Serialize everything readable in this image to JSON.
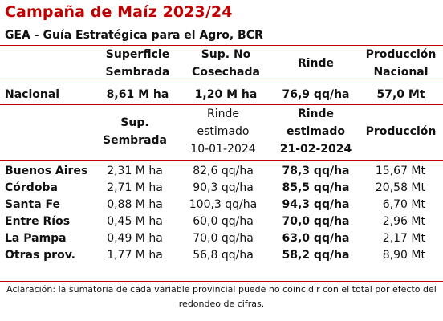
{
  "title": "Campaña de Maíz 2023/24",
  "subtitle": "GEA - Guía Estratégica para el Agro, BCR",
  "national_header": {
    "superficie_l1": "Superficie",
    "superficie_l2": "Sembrada",
    "sup_no_l1": "Sup. No",
    "sup_no_l2": "Cosechada",
    "rinde": "Rinde",
    "produccion_l1": "Producción",
    "produccion_l2": "Nacional"
  },
  "national_row": {
    "label": "Nacional",
    "superficie": "8,61 M ha",
    "sup_no": "1,20 M ha",
    "rinde": "76,9 qq/ha",
    "produccion": "57,0 Mt"
  },
  "provincial_header": {
    "sup_l1": "Sup.",
    "sup_l2": "Sembrada",
    "rinde_prev_l1": "Rinde",
    "rinde_prev_l2": "estimado",
    "rinde_prev_l3": "10-01-2024",
    "rinde_cur_l1": "Rinde",
    "rinde_cur_l2": "estimado",
    "rinde_cur_l3": "21-02-2024",
    "produccion": "Producción"
  },
  "provinces": [
    {
      "name": "Buenos Aires",
      "sup": "2,31 M ha",
      "rinde_prev": "82,6 qq/ha",
      "rinde_cur": "78,3 qq/ha",
      "prod": "15,67 Mt"
    },
    {
      "name": "Córdoba",
      "sup": "2,71 M ha",
      "rinde_prev": "90,3 qq/ha",
      "rinde_cur": "85,5 qq/ha",
      "prod": "20,58 Mt"
    },
    {
      "name": "Santa Fe",
      "sup": "0,88 M ha",
      "rinde_prev": "100,3 qq/ha",
      "rinde_cur": "94,3 qq/ha",
      "prod": "6,70 Mt"
    },
    {
      "name": "Entre Ríos",
      "sup": "0,45 M ha",
      "rinde_prev": "60,0 qq/ha",
      "rinde_cur": "70,0 qq/ha",
      "prod": "2,96 Mt"
    },
    {
      "name": "La Pampa",
      "sup": "0,49 M ha",
      "rinde_prev": "70,0 qq/ha",
      "rinde_cur": "63,0 qq/ha",
      "prod": "2,17 Mt"
    },
    {
      "name": "Otras prov.",
      "sup": "1,77 M ha",
      "rinde_prev": "56,8 qq/ha",
      "rinde_cur": "58,2 qq/ha",
      "prod": "8,90 Mt"
    }
  ],
  "note": "Aclaración: la sumatoria de cada variable provincial puede no coincidir con el total por efecto del redondeo de cifras.",
  "accent_color": "#c00000"
}
